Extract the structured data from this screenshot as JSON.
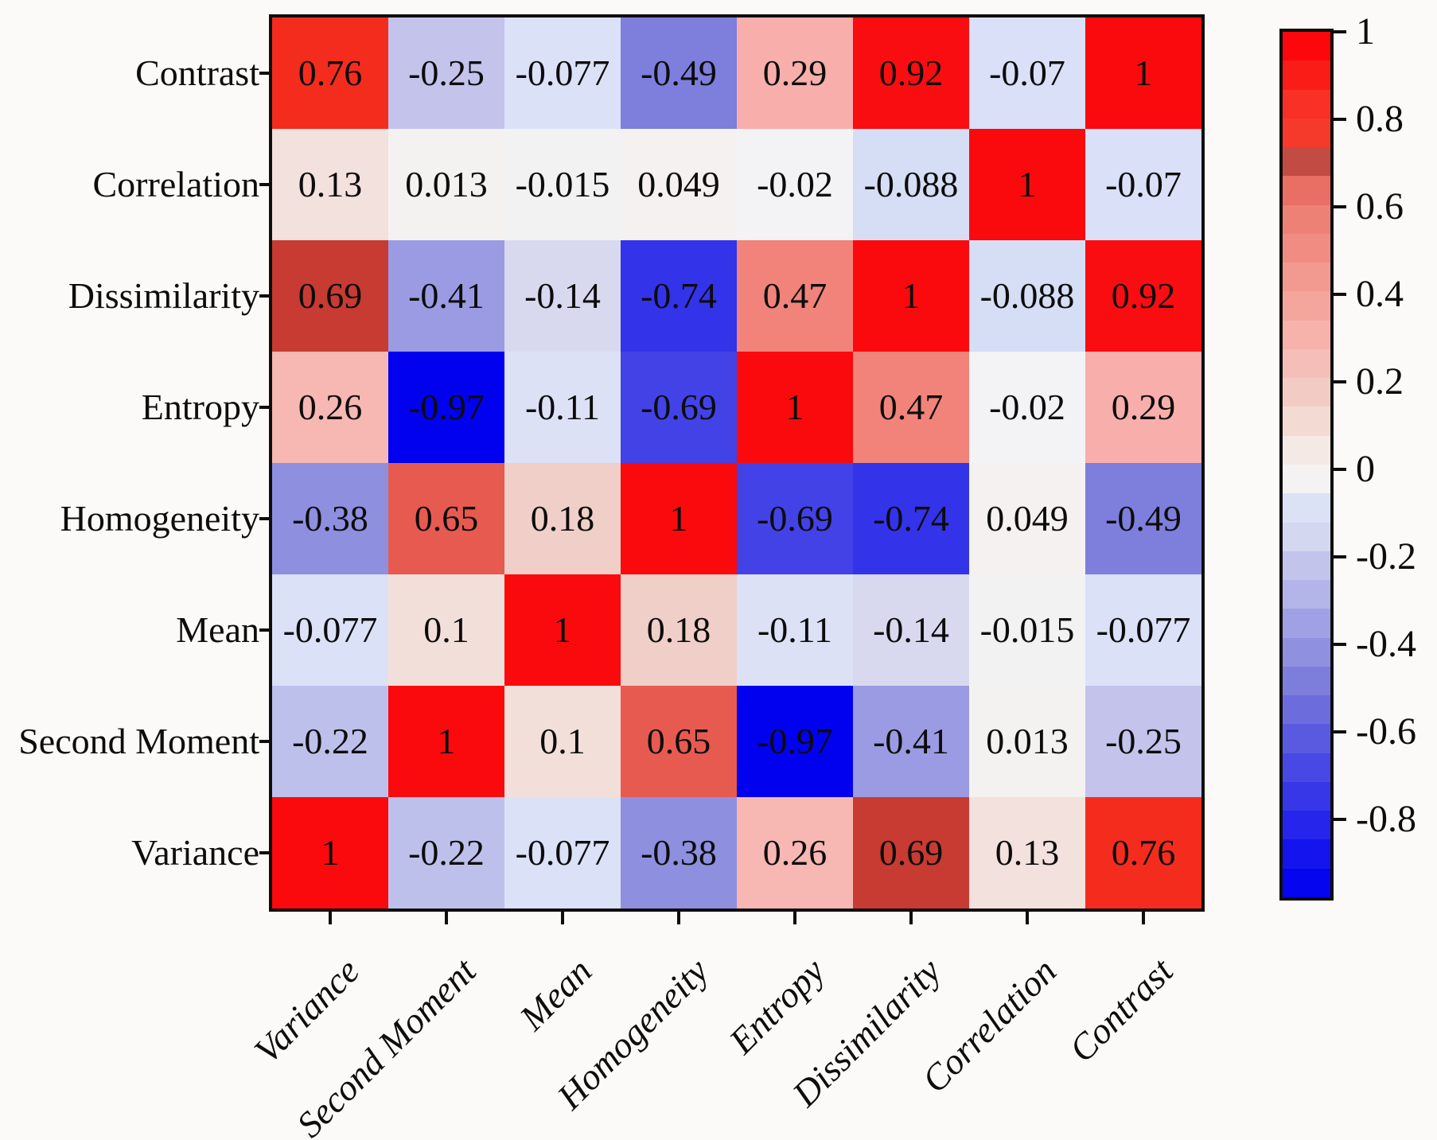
{
  "figure": {
    "background": "#fbfaf8",
    "frame_color": "#0e0e0e",
    "text_color": "#0c0c0c"
  },
  "chart_data": {
    "type": "heatmap",
    "title": "",
    "rows": [
      "Contrast",
      "Correlation",
      "Dissimilarity",
      "Entropy",
      "Homogeneity",
      "Mean",
      "Second Moment",
      "Variance"
    ],
    "columns": [
      "Variance",
      "Second Moment",
      "Mean",
      "Homogeneity",
      "Entropy",
      "Dissimilarity",
      "Correlation",
      "Contrast"
    ],
    "matrix": [
      [
        "0.76",
        "-0.25",
        "-0.077",
        "-0.49",
        "0.29",
        "0.92",
        "-0.07",
        "1"
      ],
      [
        "0.13",
        "0.013",
        "-0.015",
        "0.049",
        "-0.02",
        "-0.088",
        "1",
        "-0.07"
      ],
      [
        "0.69",
        "-0.41",
        "-0.14",
        "-0.74",
        "0.47",
        "1",
        "-0.088",
        "0.92"
      ],
      [
        "0.26",
        "-0.97",
        "-0.11",
        "-0.69",
        "1",
        "0.47",
        "-0.02",
        "0.29"
      ],
      [
        "-0.38",
        "0.65",
        "0.18",
        "1",
        "-0.69",
        "-0.74",
        "0.049",
        "-0.49"
      ],
      [
        "-0.077",
        "0.1",
        "1",
        "0.18",
        "-0.11",
        "-0.14",
        "-0.015",
        "-0.077"
      ],
      [
        "-0.22",
        "1",
        "0.1",
        "0.65",
        "-0.97",
        "-0.41",
        "0.013",
        "-0.25"
      ],
      [
        "1",
        "-0.22",
        "-0.077",
        "-0.38",
        "0.26",
        "0.69",
        "0.13",
        "0.76"
      ]
    ],
    "value_colors": {
      "1": "#fa0a0d",
      "0.92": "#f90d10",
      "0.76": "#f42c1e",
      "0.69": "#c73b32",
      "0.65": "#e75a50",
      "0.47": "#f1837a",
      "0.29": "#f8aeaa",
      "0.26": "#f7b7b3",
      "0.18": "#efcfc8",
      "0.13": "#f3e1dd",
      "0.1": "#f3dfda",
      "0.049": "#f4f1f0",
      "0.013": "#f4f2f1",
      "-0.015": "#f3f2f3",
      "-0.02": "#f3f2f4",
      "-0.07": "#d9e0f7",
      "-0.077": "#dbe1f7",
      "-0.088": "#d6def6",
      "-0.11": "#dce1f6",
      "-0.14": "#d8d9ef",
      "-0.22": "#bec0ec",
      "-0.25": "#c3c3eb",
      "-0.38": "#8f8fe0",
      "-0.41": "#9b9be3",
      "-0.49": "#7e7edd",
      "-0.69": "#4242e6",
      "-0.74": "#3333e9",
      "-0.97": "#0101ef"
    },
    "colorbar": {
      "max": 1,
      "min": -0.97,
      "tick_labels": [
        "1",
        "0.8",
        "0.6",
        "0.4",
        "0.2",
        "0",
        "-0.2",
        "-0.4",
        "-0.6",
        "-0.8"
      ],
      "tick_values": [
        1,
        0.8,
        0.6,
        0.4,
        0.2,
        0,
        -0.2,
        -0.4,
        -0.6,
        -0.8
      ],
      "segments": [
        "#fb070c",
        "#f91c17",
        "#f93026",
        "#f53a2b",
        "#c24b43",
        "#e96e64",
        "#ee8175",
        "#f08c82",
        "#f29a90",
        "#f4a69d",
        "#f7b2ab",
        "#f6beb8",
        "#f2ccc4",
        "#f3dbd4",
        "#f4e9e5",
        "#f4f2f2",
        "#dce2f6",
        "#d4d7f0",
        "#c3c4ec",
        "#b3b4e8",
        "#a0a0e4",
        "#9090e0",
        "#7d7ddc",
        "#6c6cdc",
        "#5a5ae0",
        "#4848e4",
        "#3737e8",
        "#2525ec",
        "#1414ee",
        "#0505f0"
      ]
    }
  }
}
